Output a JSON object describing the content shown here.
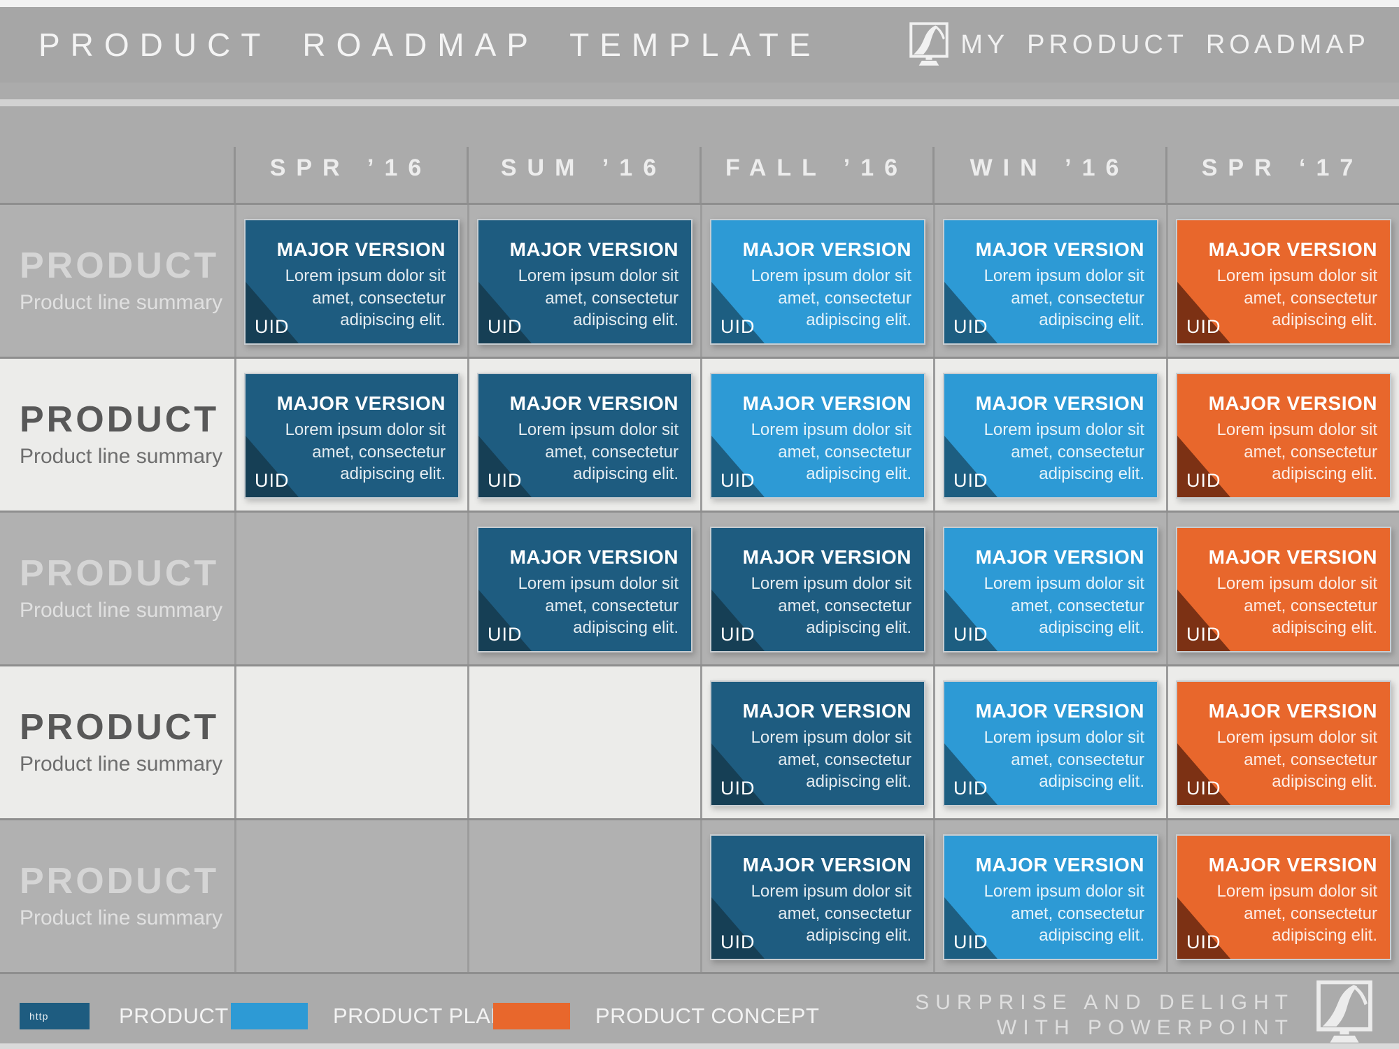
{
  "header": {
    "title": "PRODUCT ROADMAP TEMPLATE",
    "brand": "MY PRODUCT ROADMAP",
    "brand_icon": "monitor-road-logo"
  },
  "timeline": [
    "SPR ’16",
    "SUM ’16",
    "FALL ’16",
    "WIN ’16",
    "SPR ‘17"
  ],
  "card_text": {
    "title": "MAJOR VERSION",
    "body_lines": [
      "Lorem ipsum dolor sit",
      "amet, consectetur",
      "adipiscing elit."
    ],
    "uid": "UID"
  },
  "grid": {
    "rows": [
      {
        "label": "PRODUCT",
        "summary": "Product line summary",
        "cells": [
          "por",
          "por",
          "planning",
          "planning",
          "concept"
        ]
      },
      {
        "label": "PRODUCT",
        "summary": "Product line summary",
        "cells": [
          "por",
          "por",
          "planning",
          "planning",
          "concept"
        ]
      },
      {
        "label": "PRODUCT",
        "summary": "Product line summary",
        "cells": [
          null,
          "por",
          "por",
          "planning",
          "concept"
        ]
      },
      {
        "label": "PRODUCT",
        "summary": "Product line summary",
        "cells": [
          null,
          null,
          "por",
          "planning",
          "concept"
        ]
      },
      {
        "label": "PRODUCT",
        "summary": "Product line summary",
        "cells": [
          null,
          null,
          "por",
          "planning",
          "concept"
        ]
      }
    ]
  },
  "legend": [
    {
      "label": "PRODUCT POR",
      "type": "por",
      "color": "#1E5C80",
      "swatch_text": "http"
    },
    {
      "label": "PRODUCT PLANNING",
      "type": "planning",
      "color": "#2D9AD5",
      "swatch_text": ""
    },
    {
      "label": "PRODUCT CONCEPT",
      "type": "concept",
      "color": "#E8672C",
      "swatch_text": ""
    }
  ],
  "footer": {
    "line1": "SURPRISE AND DELIGHT",
    "line2": "WITH POWERPOINT"
  },
  "colors": {
    "background": "#ABABAB",
    "row_gray": "#B1B1B1",
    "row_light": "#ECECEA",
    "por": "#1E5C80",
    "por_fold": "#163F55",
    "planning": "#2D9AD5",
    "planning_fold": "#1D5E81",
    "concept": "#E8672C",
    "concept_fold": "#7C3114"
  }
}
